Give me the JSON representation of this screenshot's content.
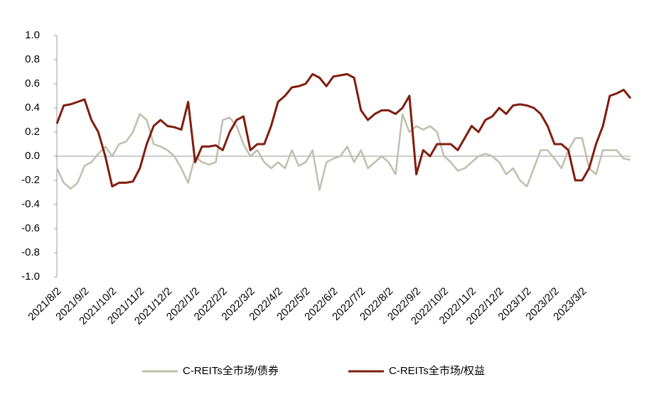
{
  "chart_data": {
    "type": "line",
    "categories": [
      "2021/8/2",
      null,
      null,
      null,
      "2021/9/2",
      null,
      null,
      null,
      "2021/10/2",
      null,
      null,
      null,
      "2021/11/2",
      null,
      null,
      null,
      "2021/12/2",
      null,
      null,
      null,
      "2022/1/2",
      null,
      null,
      null,
      "2022/2/2",
      null,
      null,
      null,
      "2022/3/2",
      null,
      null,
      null,
      "2022/4/2",
      null,
      null,
      null,
      "2022/5/2",
      null,
      null,
      null,
      "2022/6/2",
      null,
      null,
      null,
      "2022/7/2",
      null,
      null,
      null,
      "2022/8/2",
      null,
      null,
      null,
      "2022/9/2",
      null,
      null,
      null,
      "2022/10/2",
      null,
      null,
      null,
      "2022/11/2",
      null,
      null,
      null,
      "2022/12/2",
      null,
      null,
      null,
      "2023/1/2",
      null,
      null,
      null,
      "2023/2/2",
      null,
      null,
      null,
      "2023/3/2",
      null,
      null,
      null,
      null,
      null,
      null,
      null
    ],
    "series": [
      {
        "name": "C-REITs全市场/债券",
        "color": "#bfbfae",
        "values": [
          -0.1,
          -0.22,
          -0.27,
          -0.22,
          -0.08,
          -0.05,
          0.02,
          0.08,
          0.0,
          0.1,
          0.12,
          0.2,
          0.35,
          0.3,
          0.1,
          0.08,
          0.05,
          0.0,
          -0.1,
          -0.22,
          0.0,
          -0.05,
          -0.07,
          -0.05,
          0.3,
          0.32,
          0.25,
          0.1,
          0.0,
          0.05,
          -0.05,
          -0.1,
          -0.05,
          -0.1,
          0.05,
          -0.08,
          -0.05,
          0.05,
          -0.28,
          -0.05,
          -0.02,
          0.0,
          0.08,
          -0.05,
          0.05,
          -0.1,
          -0.05,
          0.0,
          -0.05,
          -0.15,
          0.35,
          0.2,
          0.25,
          0.22,
          0.25,
          0.2,
          0.0,
          -0.05,
          -0.12,
          -0.1,
          -0.05,
          0.0,
          0.02,
          0.0,
          -0.05,
          -0.15,
          -0.1,
          -0.2,
          -0.25,
          -0.1,
          0.05,
          0.05,
          -0.02,
          -0.1,
          0.05,
          0.15,
          0.15,
          -0.1,
          -0.15,
          0.05,
          0.05,
          0.05,
          -0.02,
          -0.03
        ]
      },
      {
        "name": "C-REITs全市场/权益",
        "color": "#7f1d0e",
        "values": [
          0.27,
          0.42,
          0.43,
          0.45,
          0.47,
          0.3,
          0.2,
          0.0,
          -0.25,
          -0.22,
          -0.22,
          -0.21,
          -0.1,
          0.1,
          0.25,
          0.3,
          0.25,
          0.24,
          0.22,
          0.45,
          -0.05,
          0.08,
          0.08,
          0.09,
          0.05,
          0.2,
          0.3,
          0.33,
          0.05,
          0.1,
          0.1,
          0.25,
          0.45,
          0.5,
          0.57,
          0.58,
          0.6,
          0.68,
          0.65,
          0.58,
          0.66,
          0.67,
          0.68,
          0.65,
          0.38,
          0.3,
          0.35,
          0.38,
          0.38,
          0.35,
          0.4,
          0.5,
          -0.15,
          0.05,
          0.0,
          0.1,
          0.1,
          0.1,
          0.05,
          0.15,
          0.25,
          0.2,
          0.3,
          0.33,
          0.4,
          0.35,
          0.42,
          0.43,
          0.42,
          0.4,
          0.35,
          0.25,
          0.1,
          0.1,
          0.05,
          -0.2,
          -0.2,
          -0.1,
          0.1,
          0.25,
          0.5,
          0.52,
          0.55,
          0.48
        ]
      }
    ],
    "ylim": [
      -1.0,
      1.0
    ],
    "yticks": [
      {
        "value": -1.0,
        "label": "-1.0"
      },
      {
        "value": -0.8,
        "label": "-0.8"
      },
      {
        "value": -0.6,
        "label": "-0.6"
      },
      {
        "value": -0.4,
        "label": "-0.4"
      },
      {
        "value": -0.2,
        "label": "-0.2"
      },
      {
        "value": 0.0,
        "label": "0.0"
      },
      {
        "value": 0.2,
        "label": "0.2"
      },
      {
        "value": 0.4,
        "label": "0.4"
      },
      {
        "value": 0.6,
        "label": "0.6"
      },
      {
        "value": 0.8,
        "label": "0.8"
      },
      {
        "value": 1.0,
        "label": "1.0"
      }
    ]
  }
}
